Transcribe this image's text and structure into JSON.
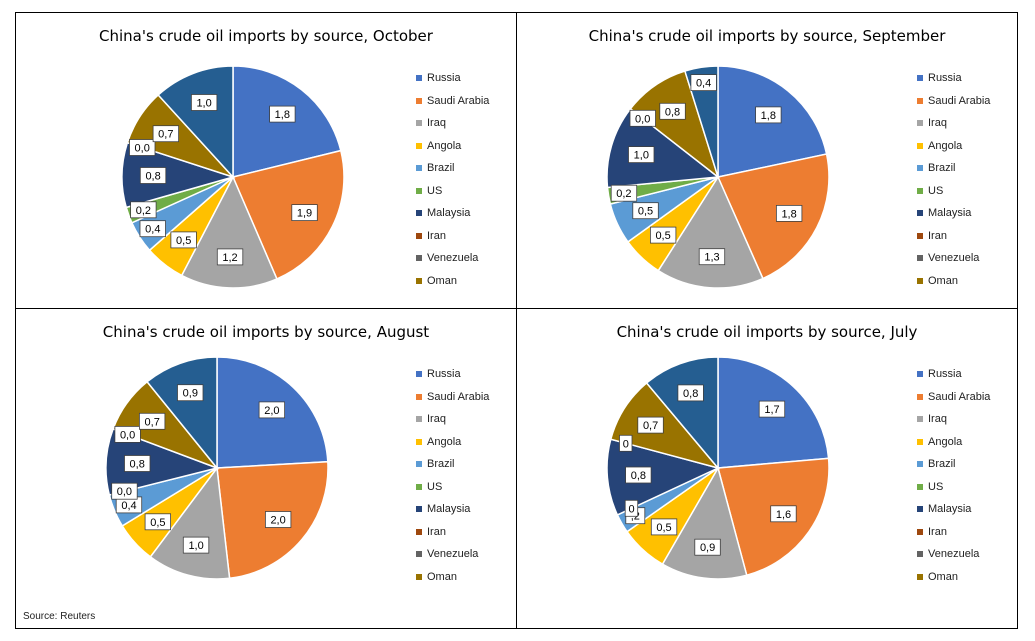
{
  "legend_labels": [
    "Russia",
    "Saudi Arabia",
    "Iraq",
    "Angola",
    "Brazil",
    "US",
    "Malaysia",
    "Iran",
    "Venezuela",
    "Oman"
  ],
  "colors": [
    "#4472C4",
    "#ED7D31",
    "#A5A5A5",
    "#FFC000",
    "#5B9BD5",
    "#70AD47",
    "#264478",
    "#9E480E",
    "#636363",
    "#997300",
    "#255E91"
  ],
  "source": "Source: Reuters",
  "chart_data": [
    {
      "type": "pie",
      "title": "China's crude oil imports by source, October",
      "categories": [
        "Russia",
        "Saudi Arabia",
        "Iraq",
        "Angola",
        "Brazil",
        "US",
        "Malaysia",
        "Iran",
        "Venezuela",
        "Oman",
        ""
      ],
      "values": [
        1.8,
        1.9,
        1.2,
        0.5,
        0.4,
        0.2,
        0.8,
        0.0,
        0.0,
        0.7,
        1.0
      ],
      "labels": [
        "1,8",
        "1,9",
        "1,2",
        "0,5",
        "0,4",
        "0,2",
        "0,8",
        "",
        "0,0",
        "0,7",
        "1,0"
      ],
      "legend_position": "right"
    },
    {
      "type": "pie",
      "title": "China's crude oil imports by source, September",
      "categories": [
        "Russia",
        "Saudi Arabia",
        "Iraq",
        "Angola",
        "Brazil",
        "US",
        "Malaysia",
        "Iran",
        "Venezuela",
        "Oman",
        ""
      ],
      "values": [
        1.8,
        1.8,
        1.3,
        0.5,
        0.5,
        0.2,
        1.0,
        0.0,
        0.0,
        0.8,
        0.4
      ],
      "labels": [
        "1,8",
        "1,8",
        "1,3",
        "0,5",
        "0,5",
        "0,2",
        "1,0",
        "",
        "0,0",
        "0,8",
        "0,4"
      ],
      "legend_position": "right"
    },
    {
      "type": "pie",
      "title": "China's crude oil imports by source, August",
      "categories": [
        "Russia",
        "Saudi Arabia",
        "Iraq",
        "Angola",
        "Brazil",
        "US",
        "Malaysia",
        "Iran",
        "Venezuela",
        "Oman",
        ""
      ],
      "values": [
        2.0,
        2.0,
        1.0,
        0.5,
        0.4,
        0.0,
        0.8,
        0.0,
        0.0,
        0.7,
        0.9
      ],
      "labels": [
        "2,0",
        "2,0",
        "1,0",
        "0,5",
        "0,4",
        "0,0",
        "0,8",
        "",
        "0,0",
        "0,7",
        "0,9"
      ],
      "legend_position": "right"
    },
    {
      "type": "pie",
      "title": "China's crude oil imports by source, July",
      "categories": [
        "Russia",
        "Saudi Arabia",
        "Iraq",
        "Angola",
        "Brazil",
        "US",
        "Malaysia",
        "Iran",
        "Venezuela",
        "Oman",
        ""
      ],
      "values": [
        1.7,
        1.6,
        0.9,
        0.5,
        0.2,
        0.0,
        0.8,
        0.0,
        0.0,
        0.7,
        0.8
      ],
      "labels": [
        "1,7",
        "1,6",
        "0,9",
        "0,5",
        ",2",
        "0",
        "0,8",
        "",
        "0",
        "0,7",
        "0,8"
      ],
      "legend_position": "right"
    }
  ]
}
